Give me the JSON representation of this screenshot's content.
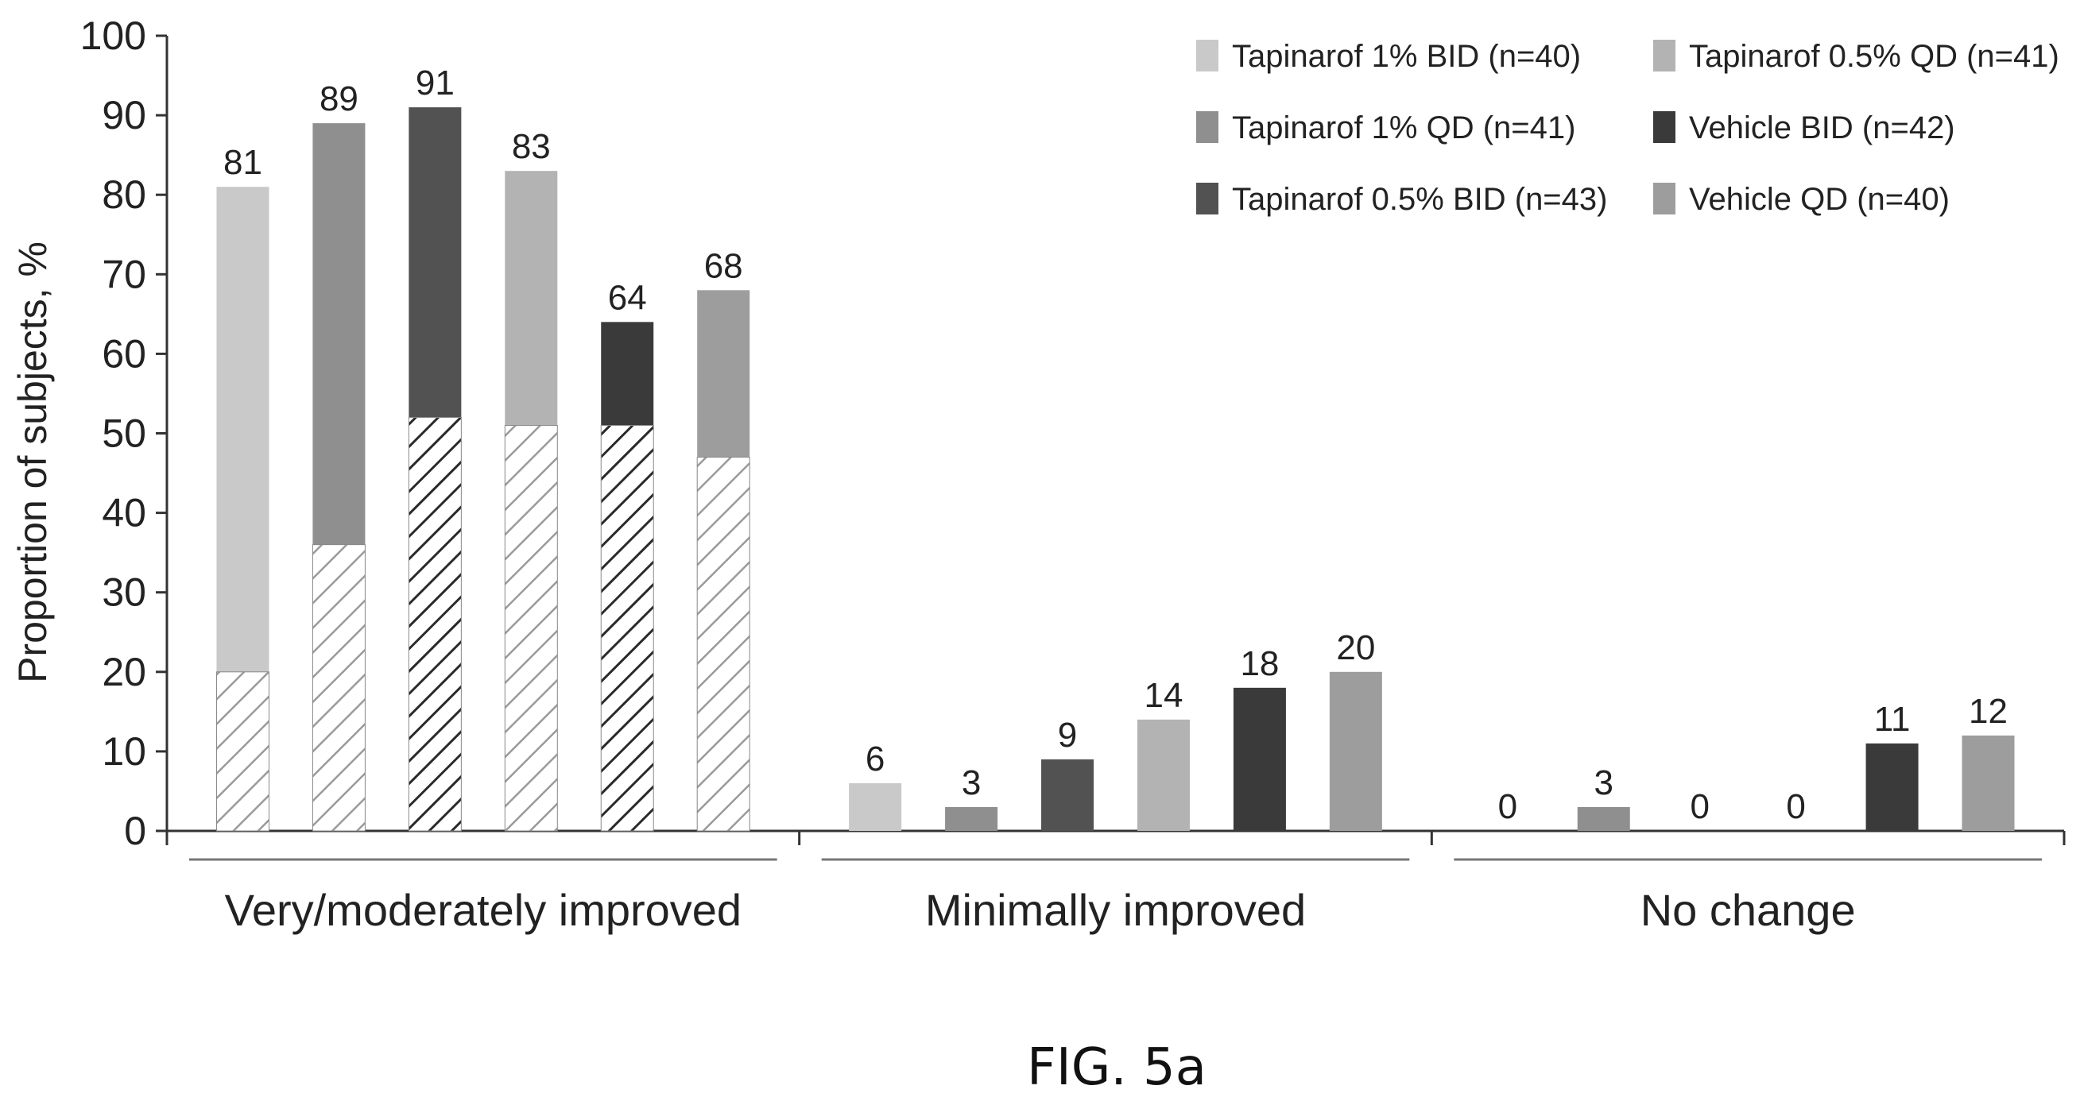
{
  "chart_data": {
    "type": "bar",
    "ylabel": "Proportion of subjects, %",
    "ylim": [
      0,
      100
    ],
    "yticks": [
      "0",
      "10",
      "20",
      "30",
      "40",
      "50",
      "60",
      "70",
      "80",
      "90",
      "100"
    ],
    "categories": [
      "Very/moderately improved",
      "Minimally improved",
      "No change"
    ],
    "series": [
      {
        "name": "Tapinarof 1% BID (n=40)",
        "color": "#c9c9c9",
        "values": [
          81,
          6,
          0
        ],
        "labels": [
          "81",
          "6",
          "0"
        ],
        "hatched_part": [
          20,
          null,
          null
        ]
      },
      {
        "name": "Tapinarof 1% QD (n=41)",
        "color": "#8f8f8f",
        "values": [
          89,
          3,
          3
        ],
        "labels": [
          "89",
          "3",
          "3"
        ],
        "hatched_part": [
          36,
          null,
          null
        ]
      },
      {
        "name": "Tapinarof 0.5% BID (n=43)",
        "color": "#525252",
        "values": [
          91,
          9,
          0
        ],
        "labels": [
          "91",
          "9",
          "0"
        ],
        "hatched_part": [
          52,
          null,
          null
        ]
      },
      {
        "name": "Tapinarof 0.5% QD (n=41)",
        "color": "#b3b3b3",
        "values": [
          83,
          14,
          0
        ],
        "labels": [
          "83",
          "14",
          "0"
        ],
        "hatched_part": [
          51,
          null,
          null
        ]
      },
      {
        "name": "Vehicle BID (n=42)",
        "color": "#3a3a3a",
        "values": [
          64,
          18,
          11
        ],
        "labels": [
          "64",
          "18",
          "11"
        ],
        "hatched_part": [
          51,
          null,
          null
        ]
      },
      {
        "name": "Vehicle QD (n=40)",
        "color": "#9d9d9d",
        "values": [
          68,
          20,
          12
        ],
        "labels": [
          "68",
          "20",
          "12"
        ],
        "hatched_part": [
          47,
          null,
          null
        ]
      }
    ],
    "legend_position": "top-right",
    "grid": false
  },
  "caption": "FIG. 5a"
}
